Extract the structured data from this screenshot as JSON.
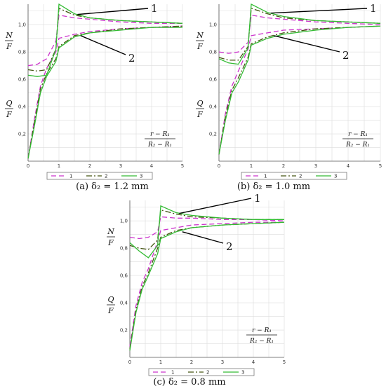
{
  "chart_data": [
    {
      "type": "line",
      "caption": "(a)  δ₂ = 1.2  mm",
      "x_ticks": [
        0,
        1,
        2,
        3,
        4,
        5
      ],
      "y_ticks": [
        "0,2",
        "0,4",
        "0,6",
        "0,8",
        "1,0"
      ],
      "xlim": [
        0,
        5
      ],
      "ylim": [
        0,
        1.15
      ],
      "grid": true,
      "legend": "bottom-center",
      "ylabel_top": {
        "num": "N",
        "den": "F"
      },
      "ylabel_bottom": {
        "num": "Q",
        "den": "F"
      },
      "xlabel": {
        "num": "r − R₁",
        "den": "R₂ − R₁"
      },
      "callouts": [
        "1",
        "2"
      ],
      "series": [
        {
          "name": "1",
          "color": "#cc33cc",
          "dash": "7,4",
          "upper": [
            [
              0,
              0.7
            ],
            [
              0.3,
              0.71
            ],
            [
              0.6,
              0.75
            ],
            [
              0.9,
              0.88
            ],
            [
              1.0,
              1.07
            ],
            [
              1.5,
              1.05
            ],
            [
              2,
              1.04
            ],
            [
              3,
              1.02
            ],
            [
              4,
              1.01
            ],
            [
              5,
              1.01
            ]
          ],
          "lower": [
            [
              0,
              0.02
            ],
            [
              0.2,
              0.3
            ],
            [
              0.4,
              0.55
            ],
            [
              0.6,
              0.68
            ],
            [
              0.9,
              0.8
            ],
            [
              1.0,
              0.9
            ],
            [
              1.5,
              0.93
            ],
            [
              2,
              0.95
            ],
            [
              3,
              0.97
            ],
            [
              4,
              0.98
            ],
            [
              5,
              0.99
            ]
          ]
        },
        {
          "name": "2",
          "color": "#445511",
          "dash": "8,3,2,3",
          "upper": [
            [
              0,
              0.67
            ],
            [
              0.3,
              0.66
            ],
            [
              0.6,
              0.67
            ],
            [
              0.9,
              0.82
            ],
            [
              1.0,
              1.12
            ],
            [
              1.5,
              1.07
            ],
            [
              2,
              1.05
            ],
            [
              3,
              1.03
            ],
            [
              4,
              1.02
            ],
            [
              5,
              1.01
            ]
          ],
          "lower": [
            [
              0,
              0.02
            ],
            [
              0.2,
              0.28
            ],
            [
              0.4,
              0.53
            ],
            [
              0.6,
              0.64
            ],
            [
              0.9,
              0.75
            ],
            [
              1.0,
              0.84
            ],
            [
              1.5,
              0.92
            ],
            [
              2,
              0.94
            ],
            [
              3,
              0.97
            ],
            [
              4,
              0.98
            ],
            [
              5,
              0.99
            ]
          ]
        },
        {
          "name": "3",
          "color": "#33bb33",
          "dash": "",
          "upper": [
            [
              0,
              0.63
            ],
            [
              0.3,
              0.62
            ],
            [
              0.6,
              0.63
            ],
            [
              0.9,
              0.82
            ],
            [
              1.0,
              1.15
            ],
            [
              1.5,
              1.08
            ],
            [
              2,
              1.05
            ],
            [
              3,
              1.03
            ],
            [
              4,
              1.02
            ],
            [
              5,
              1.01
            ]
          ],
          "lower": [
            [
              0,
              0.02
            ],
            [
              0.2,
              0.25
            ],
            [
              0.4,
              0.5
            ],
            [
              0.6,
              0.62
            ],
            [
              0.9,
              0.73
            ],
            [
              1.0,
              0.83
            ],
            [
              1.5,
              0.91
            ],
            [
              2,
              0.94
            ],
            [
              3,
              0.96
            ],
            [
              4,
              0.98
            ],
            [
              5,
              0.98
            ]
          ]
        }
      ]
    },
    {
      "type": "line",
      "caption": "(b)  δ₂ = 1.0  mm",
      "x_ticks": [
        0,
        1,
        2,
        3,
        4,
        5
      ],
      "y_ticks": [
        "0,2",
        "0,4",
        "0,6",
        "0,8",
        "1,0"
      ],
      "xlim": [
        0,
        5
      ],
      "ylim": [
        0,
        1.15
      ],
      "grid": true,
      "legend": "bottom-center",
      "ylabel_top": {
        "num": "N",
        "den": "F"
      },
      "ylabel_bottom": {
        "num": "Q",
        "den": "F"
      },
      "xlabel": {
        "num": "r − R₁",
        "den": "R₂ − R₁"
      },
      "callouts": [
        "1",
        "2"
      ],
      "series": [
        {
          "name": "1",
          "color": "#cc33cc",
          "dash": "7,4",
          "upper": [
            [
              0,
              0.8
            ],
            [
              0.3,
              0.79
            ],
            [
              0.6,
              0.8
            ],
            [
              0.9,
              0.87
            ],
            [
              1.0,
              1.07
            ],
            [
              1.5,
              1.05
            ],
            [
              2,
              1.04
            ],
            [
              3,
              1.02
            ],
            [
              4,
              1.01
            ],
            [
              5,
              1.0
            ]
          ],
          "lower": [
            [
              0,
              0.05
            ],
            [
              0.2,
              0.35
            ],
            [
              0.4,
              0.55
            ],
            [
              0.6,
              0.66
            ],
            [
              0.9,
              0.82
            ],
            [
              1.0,
              0.92
            ],
            [
              1.5,
              0.94
            ],
            [
              2,
              0.96
            ],
            [
              3,
              0.97
            ],
            [
              4,
              0.98
            ],
            [
              5,
              0.99
            ]
          ]
        },
        {
          "name": "2",
          "color": "#445511",
          "dash": "8,3,2,3",
          "upper": [
            [
              0,
              0.76
            ],
            [
              0.3,
              0.74
            ],
            [
              0.6,
              0.74
            ],
            [
              0.9,
              0.84
            ],
            [
              1.0,
              1.12
            ],
            [
              1.5,
              1.08
            ],
            [
              2,
              1.05
            ],
            [
              3,
              1.03
            ],
            [
              4,
              1.02
            ],
            [
              5,
              1.01
            ]
          ],
          "lower": [
            [
              0,
              0.05
            ],
            [
              0.2,
              0.33
            ],
            [
              0.4,
              0.52
            ],
            [
              0.6,
              0.61
            ],
            [
              0.9,
              0.76
            ],
            [
              1.0,
              0.86
            ],
            [
              1.5,
              0.91
            ],
            [
              2,
              0.94
            ],
            [
              3,
              0.97
            ],
            [
              4,
              0.98
            ],
            [
              5,
              0.99
            ]
          ]
        },
        {
          "name": "3",
          "color": "#33bb33",
          "dash": "",
          "upper": [
            [
              0,
              0.75
            ],
            [
              0.3,
              0.72
            ],
            [
              0.6,
              0.71
            ],
            [
              0.9,
              0.83
            ],
            [
              1.0,
              1.15
            ],
            [
              1.5,
              1.09
            ],
            [
              2,
              1.06
            ],
            [
              3,
              1.03
            ],
            [
              4,
              1.02
            ],
            [
              5,
              1.01
            ]
          ],
          "lower": [
            [
              0,
              0.05
            ],
            [
              0.2,
              0.3
            ],
            [
              0.4,
              0.5
            ],
            [
              0.6,
              0.58
            ],
            [
              0.9,
              0.74
            ],
            [
              1.0,
              0.85
            ],
            [
              1.5,
              0.9
            ],
            [
              2,
              0.93
            ],
            [
              3,
              0.96
            ],
            [
              4,
              0.98
            ],
            [
              5,
              0.99
            ]
          ]
        }
      ]
    },
    {
      "type": "line",
      "caption": "(c)  δ₂ = 0.8  mm",
      "x_ticks": [
        0,
        1,
        2,
        3,
        4,
        5
      ],
      "y_ticks": [
        "0,2",
        "0,4",
        "0,6",
        "0,8",
        "1,0"
      ],
      "xlim": [
        0,
        5
      ],
      "ylim": [
        0,
        1.15
      ],
      "grid": true,
      "legend": "bottom-center",
      "ylabel_top": {
        "num": "N",
        "den": "F"
      },
      "ylabel_bottom": {
        "num": "Q",
        "den": "F"
      },
      "xlabel": {
        "num": "r − R₁",
        "den": "R₂ − R₁"
      },
      "callouts": [
        "1",
        "2"
      ],
      "series": [
        {
          "name": "1",
          "color": "#cc33cc",
          "dash": "7,4",
          "upper": [
            [
              0,
              0.88
            ],
            [
              0.3,
              0.87
            ],
            [
              0.6,
              0.88
            ],
            [
              0.9,
              0.92
            ],
            [
              1.0,
              1.03
            ],
            [
              1.5,
              1.02
            ],
            [
              2,
              1.02
            ],
            [
              3,
              1.01
            ],
            [
              4,
              1.01
            ],
            [
              5,
              1.0
            ]
          ],
          "lower": [
            [
              0,
              0.08
            ],
            [
              0.2,
              0.38
            ],
            [
              0.4,
              0.55
            ],
            [
              0.6,
              0.65
            ],
            [
              0.9,
              0.85
            ],
            [
              1.0,
              0.93
            ],
            [
              1.5,
              0.95
            ],
            [
              2,
              0.97
            ],
            [
              3,
              0.98
            ],
            [
              4,
              0.99
            ],
            [
              5,
              0.99
            ]
          ]
        },
        {
          "name": "2",
          "color": "#445511",
          "dash": "8,3,2,3",
          "upper": [
            [
              0,
              0.82
            ],
            [
              0.3,
              0.8
            ],
            [
              0.6,
              0.79
            ],
            [
              0.9,
              0.86
            ],
            [
              1.0,
              1.08
            ],
            [
              1.5,
              1.05
            ],
            [
              2,
              1.03
            ],
            [
              3,
              1.02
            ],
            [
              4,
              1.01
            ],
            [
              5,
              1.01
            ]
          ],
          "lower": [
            [
              0,
              0.06
            ],
            [
              0.2,
              0.35
            ],
            [
              0.4,
              0.52
            ],
            [
              0.6,
              0.62
            ],
            [
              0.9,
              0.8
            ],
            [
              1.0,
              0.88
            ],
            [
              1.5,
              0.93
            ],
            [
              2,
              0.95
            ],
            [
              3,
              0.97
            ],
            [
              4,
              0.98
            ],
            [
              5,
              0.99
            ]
          ]
        },
        {
          "name": "3",
          "color": "#33bb33",
          "dash": "",
          "upper": [
            [
              0,
              0.84
            ],
            [
              0.3,
              0.78
            ],
            [
              0.6,
              0.73
            ],
            [
              0.9,
              0.82
            ],
            [
              1.0,
              1.11
            ],
            [
              1.5,
              1.06
            ],
            [
              2,
              1.04
            ],
            [
              3,
              1.02
            ],
            [
              4,
              1.01
            ],
            [
              5,
              1.01
            ]
          ],
          "lower": [
            [
              0,
              0.05
            ],
            [
              0.2,
              0.33
            ],
            [
              0.4,
              0.5
            ],
            [
              0.6,
              0.6
            ],
            [
              0.9,
              0.76
            ],
            [
              1.0,
              0.87
            ],
            [
              1.5,
              0.92
            ],
            [
              2,
              0.95
            ],
            [
              3,
              0.97
            ],
            [
              4,
              0.98
            ],
            [
              5,
              0.99
            ]
          ]
        }
      ]
    }
  ]
}
